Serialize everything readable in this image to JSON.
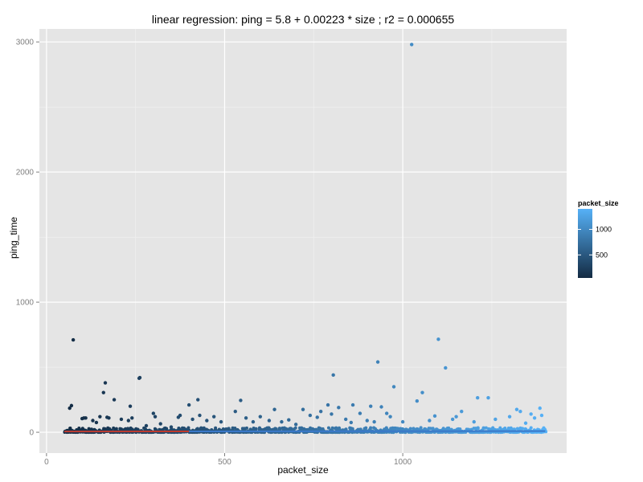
{
  "chart_data": {
    "type": "scatter",
    "title": "linear regression: ping = 5.8 + 0.00223 * size ; r2 = 0.000655",
    "xlabel": "packet_size",
    "ylabel": "ping_time",
    "xlim": [
      -20,
      1460
    ],
    "ylim": [
      -160,
      3100
    ],
    "xticks": [
      0,
      500,
      1000
    ],
    "yticks": [
      0,
      1000,
      2000,
      3000
    ],
    "grid": true,
    "color_scale": {
      "variable": "packet_size",
      "low_color": "#132B43",
      "high_color": "#56B1F7",
      "range": [
        50,
        1400
      ],
      "legend_ticks": [
        500,
        1000
      ],
      "legend_position": "right"
    },
    "regression": {
      "intercept": 5.8,
      "slope": 0.00223,
      "line_color": "#c0392b",
      "x_range": [
        50,
        400
      ]
    },
    "outliers": [
      {
        "x": 75,
        "y": 710
      },
      {
        "x": 70,
        "y": 205
      },
      {
        "x": 65,
        "y": 185
      },
      {
        "x": 100,
        "y": 105
      },
      {
        "x": 105,
        "y": 110
      },
      {
        "x": 110,
        "y": 110
      },
      {
        "x": 130,
        "y": 90
      },
      {
        "x": 140,
        "y": 75
      },
      {
        "x": 150,
        "y": 120
      },
      {
        "x": 160,
        "y": 305
      },
      {
        "x": 165,
        "y": 380
      },
      {
        "x": 170,
        "y": 115
      },
      {
        "x": 175,
        "y": 110
      },
      {
        "x": 190,
        "y": 250
      },
      {
        "x": 210,
        "y": 100
      },
      {
        "x": 230,
        "y": 90
      },
      {
        "x": 235,
        "y": 200
      },
      {
        "x": 240,
        "y": 110
      },
      {
        "x": 260,
        "y": 415
      },
      {
        "x": 262,
        "y": 420
      },
      {
        "x": 280,
        "y": 50
      },
      {
        "x": 300,
        "y": 145
      },
      {
        "x": 305,
        "y": 120
      },
      {
        "x": 320,
        "y": 65
      },
      {
        "x": 350,
        "y": 40
      },
      {
        "x": 370,
        "y": 115
      },
      {
        "x": 375,
        "y": 130
      },
      {
        "x": 400,
        "y": 210
      },
      {
        "x": 410,
        "y": 100
      },
      {
        "x": 425,
        "y": 250
      },
      {
        "x": 430,
        "y": 130
      },
      {
        "x": 450,
        "y": 90
      },
      {
        "x": 470,
        "y": 120
      },
      {
        "x": 490,
        "y": 80
      },
      {
        "x": 530,
        "y": 160
      },
      {
        "x": 545,
        "y": 245
      },
      {
        "x": 560,
        "y": 110
      },
      {
        "x": 580,
        "y": 80
      },
      {
        "x": 600,
        "y": 120
      },
      {
        "x": 625,
        "y": 90
      },
      {
        "x": 640,
        "y": 175
      },
      {
        "x": 660,
        "y": 80
      },
      {
        "x": 680,
        "y": 95
      },
      {
        "x": 700,
        "y": 60
      },
      {
        "x": 720,
        "y": 175
      },
      {
        "x": 740,
        "y": 130
      },
      {
        "x": 760,
        "y": 115
      },
      {
        "x": 770,
        "y": 160
      },
      {
        "x": 790,
        "y": 210
      },
      {
        "x": 800,
        "y": 140
      },
      {
        "x": 805,
        "y": 440
      },
      {
        "x": 820,
        "y": 190
      },
      {
        "x": 840,
        "y": 100
      },
      {
        "x": 855,
        "y": 75
      },
      {
        "x": 860,
        "y": 210
      },
      {
        "x": 880,
        "y": 145
      },
      {
        "x": 900,
        "y": 90
      },
      {
        "x": 910,
        "y": 200
      },
      {
        "x": 920,
        "y": 80
      },
      {
        "x": 930,
        "y": 540
      },
      {
        "x": 940,
        "y": 195
      },
      {
        "x": 955,
        "y": 145
      },
      {
        "x": 965,
        "y": 120
      },
      {
        "x": 975,
        "y": 350
      },
      {
        "x": 1000,
        "y": 80
      },
      {
        "x": 1025,
        "y": 2980
      },
      {
        "x": 1040,
        "y": 240
      },
      {
        "x": 1055,
        "y": 305
      },
      {
        "x": 1075,
        "y": 90
      },
      {
        "x": 1090,
        "y": 125
      },
      {
        "x": 1100,
        "y": 715
      },
      {
        "x": 1120,
        "y": 495
      },
      {
        "x": 1140,
        "y": 100
      },
      {
        "x": 1150,
        "y": 120
      },
      {
        "x": 1165,
        "y": 160
      },
      {
        "x": 1200,
        "y": 80
      },
      {
        "x": 1210,
        "y": 265
      },
      {
        "x": 1240,
        "y": 265
      },
      {
        "x": 1260,
        "y": 100
      },
      {
        "x": 1300,
        "y": 120
      },
      {
        "x": 1320,
        "y": 175
      },
      {
        "x": 1330,
        "y": 160
      },
      {
        "x": 1345,
        "y": 70
      },
      {
        "x": 1360,
        "y": 140
      },
      {
        "x": 1370,
        "y": 110
      },
      {
        "x": 1385,
        "y": 185
      },
      {
        "x": 1390,
        "y": 130
      }
    ],
    "dense_band": {
      "x_range": [
        50,
        1400
      ],
      "y_range": [
        0,
        35
      ],
      "description_only_for_render": false
    }
  }
}
